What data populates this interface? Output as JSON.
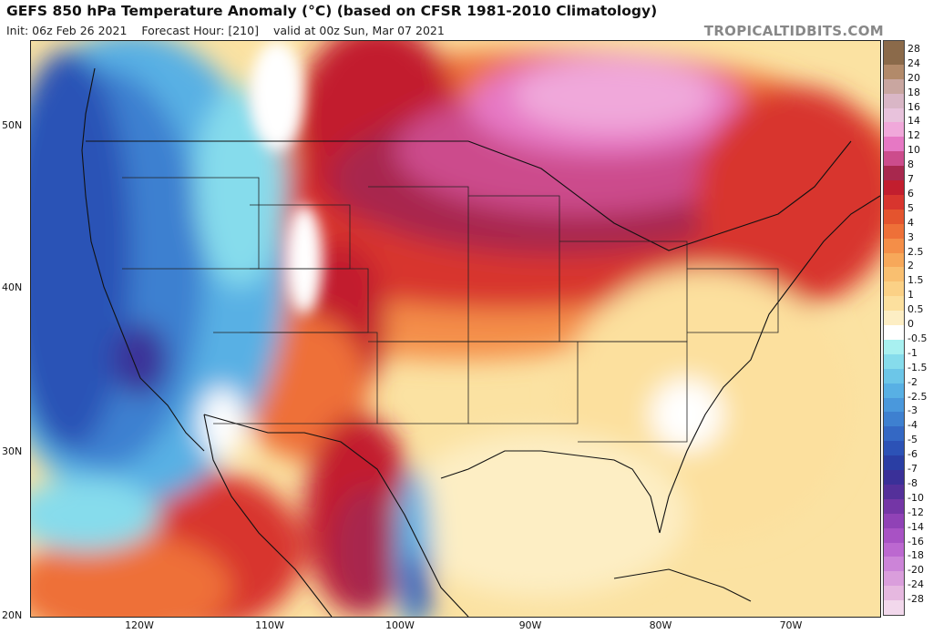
{
  "header": {
    "title": "GEFS 850 hPa Temperature Anomaly (°C) (based on CFSR 1981-2010 Climatology)",
    "init": "Init: 06z Feb 26 2021",
    "forecast_hour": "Forecast Hour: [210]",
    "valid": "valid at 00z Sun, Mar 07 2021",
    "brand": "TROPICALTIDBITS.COM"
  },
  "axes": {
    "lat_labels": [
      "50N",
      "40N",
      "30N",
      "20N"
    ],
    "lon_labels": [
      "120W",
      "110W",
      "100W",
      "90W",
      "80W",
      "70W"
    ]
  },
  "colorbar": {
    "levels": [
      {
        "label": "28",
        "color": "#8b6a4a"
      },
      {
        "label": "24",
        "color": "#b28a6a"
      },
      {
        "label": "20",
        "color": "#c9a6a0"
      },
      {
        "label": "18",
        "color": "#d9b6c6"
      },
      {
        "label": "16",
        "color": "#e8c2dc"
      },
      {
        "label": "14",
        "color": "#f0a8da"
      },
      {
        "label": "12",
        "color": "#e678c4"
      },
      {
        "label": "10",
        "color": "#cc4c8c"
      },
      {
        "label": "8",
        "color": "#a8284e"
      },
      {
        "label": "7",
        "color": "#c21e2e"
      },
      {
        "label": "6",
        "color": "#d8352e"
      },
      {
        "label": "5",
        "color": "#e4542e"
      },
      {
        "label": "4",
        "color": "#ee7038"
      },
      {
        "label": "3",
        "color": "#f48e48"
      },
      {
        "label": "2.5",
        "color": "#f7a85a"
      },
      {
        "label": "2",
        "color": "#f9bf70"
      },
      {
        "label": "1.5",
        "color": "#fbd186"
      },
      {
        "label": "1",
        "color": "#fce09e"
      },
      {
        "label": "0.5",
        "color": "#fdeec4"
      },
      {
        "label": "0",
        "color": "#ffffff"
      },
      {
        "label": "-0.5",
        "color": "#a8f0f0"
      },
      {
        "label": "-1",
        "color": "#86dcec"
      },
      {
        "label": "-1.5",
        "color": "#6cc6e8"
      },
      {
        "label": "-2",
        "color": "#58b0e4"
      },
      {
        "label": "-2.5",
        "color": "#4a98dc"
      },
      {
        "label": "-3",
        "color": "#3e80d0"
      },
      {
        "label": "-4",
        "color": "#3468c4"
      },
      {
        "label": "-5",
        "color": "#2c52b6"
      },
      {
        "label": "-6",
        "color": "#2a3ea4"
      },
      {
        "label": "-7",
        "color": "#3a3098"
      },
      {
        "label": "-8",
        "color": "#54309a"
      },
      {
        "label": "-10",
        "color": "#7436a6"
      },
      {
        "label": "-12",
        "color": "#9042b6"
      },
      {
        "label": "-14",
        "color": "#a852c4"
      },
      {
        "label": "-16",
        "color": "#bc68d0"
      },
      {
        "label": "-18",
        "color": "#cc84d8"
      },
      {
        "label": "-20",
        "color": "#da9edc"
      },
      {
        "label": "-24",
        "color": "#e6b8e0"
      },
      {
        "label": "-28",
        "color": "#f2d8ec"
      }
    ]
  }
}
